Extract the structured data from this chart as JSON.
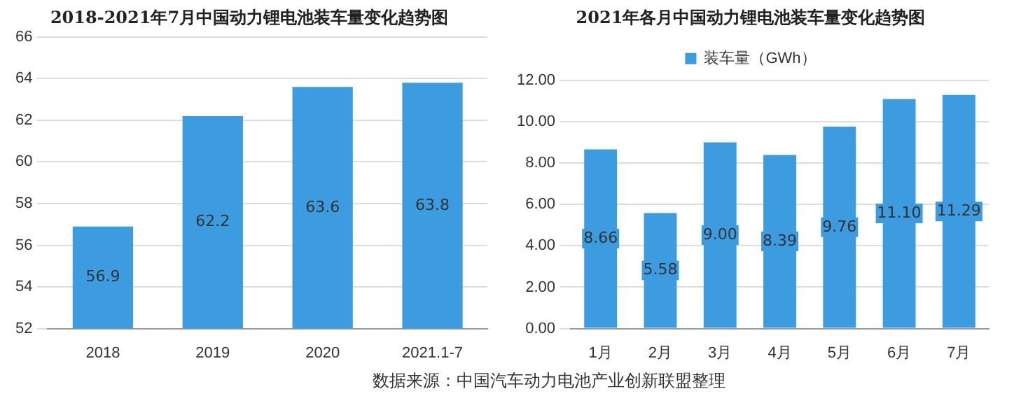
{
  "chart_data": [
    {
      "type": "bar",
      "title": "2018-2021年7月中国动力锂电池装车量变化趋势图",
      "categories": [
        "2018",
        "2019",
        "2020",
        "2021.1-7"
      ],
      "values": [
        56.9,
        62.2,
        63.6,
        63.8
      ],
      "color": "#3d9be0",
      "ylim": [
        52,
        66
      ],
      "yticks": [
        52,
        54,
        56,
        58,
        60,
        62,
        64,
        66
      ],
      "grid": "y",
      "legend": false,
      "data_labels": true,
      "annotations": [
        "数据来源：中国汽车动力电池产业创新联盟整理"
      ]
    },
    {
      "type": "bar",
      "title": "2021年各月中国动力锂电池装车量变化趋势图",
      "categories": [
        "1月",
        "2月",
        "3月",
        "4月",
        "5月",
        "6月",
        "7月"
      ],
      "series": [
        {
          "name": "装车量（GWh）",
          "color": "#3d9be0",
          "values": [
            8.66,
            5.58,
            9.0,
            8.39,
            9.76,
            11.1,
            11.29
          ],
          "value_labels": [
            "8.66",
            "5.58",
            "9.00",
            "8.39",
            "9.76",
            "11.10",
            "11.29"
          ]
        }
      ],
      "ylim": [
        0,
        12
      ],
      "yticks": [
        {
          "value": 0,
          "label": "0.00"
        },
        {
          "value": 2,
          "label": "2.00"
        },
        {
          "value": 4,
          "label": "4.00"
        },
        {
          "value": 6,
          "label": "6.00"
        },
        {
          "value": 8,
          "label": "8.00"
        },
        {
          "value": 10,
          "label": "10.00"
        },
        {
          "value": 12,
          "label": "12.00"
        }
      ],
      "grid": "y",
      "legend": "top"
    }
  ]
}
